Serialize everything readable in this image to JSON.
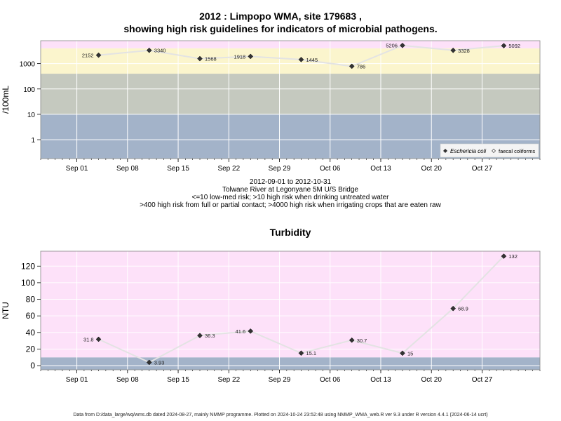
{
  "titles": {
    "line1": "2012 : Limpopo WMA, site 179683 ,",
    "line2": "showing high risk guidelines for indicators of microbial pathogens."
  },
  "caption": {
    "range": "2012-09-01 to 2012-10-31",
    "site": "Tolwane River at Legonyane 5M U/S Bridge",
    "rule1": "<=10 low-med risk; >10 high risk when drinking untreated water",
    "rule2": ">400 high risk from full or partial contact; >4000 high risk when irrigating crops that are eaten raw"
  },
  "footer": "Data from D:/data_large/wq/wms.db dated 2024-08-27, mainly NMMP programme. Plotted on 2024-10-24 23:52:48 using NMMP_WMA_web.R ver 9.3 under R version 4.4.1 (2024-06-14 ucrt)",
  "colors": {
    "band_low": "#a3b3c9",
    "band_mid": "#c5c9bf",
    "band_high": "#fbf5cd",
    "band_top": "#fde1f9",
    "line": "#e3e3e3",
    "point": "#333333",
    "grid": "#ffffff"
  },
  "chart_data": [
    {
      "type": "line",
      "title": "",
      "ylabel": "/100mL",
      "yscale": "log",
      "ylim": [
        0.18,
        8000
      ],
      "xlim": [
        "2012-08-27",
        "2012-11-04"
      ],
      "yticks": [
        1,
        10,
        100,
        1000
      ],
      "ytick_labels": [
        "1",
        "10",
        "100",
        "1000"
      ],
      "xticks": [
        "2012-09-01",
        "2012-09-08",
        "2012-09-15",
        "2012-09-22",
        "2012-09-29",
        "2012-10-06",
        "2012-10-13",
        "2012-10-20",
        "2012-10-27"
      ],
      "xtick_labels": [
        "Sep 01",
        "Sep 08",
        "Sep 15",
        "Sep 22",
        "Sep 29",
        "Oct 06",
        "Oct 13",
        "Oct 20",
        "Oct 27"
      ],
      "bands": [
        {
          "from": 0.18,
          "to": 10,
          "color": "#a3b3c9"
        },
        {
          "from": 10,
          "to": 400,
          "color": "#c5c9bf"
        },
        {
          "from": 400,
          "to": 4000,
          "color": "#fbf5cd"
        },
        {
          "from": 4000,
          "to": 8000,
          "color": "#fde1f9"
        }
      ],
      "series": [
        {
          "name": "Eschericia coli",
          "marker": "diamond",
          "x": [
            "2012-09-04",
            "2012-09-11",
            "2012-09-18",
            "2012-09-25",
            "2012-10-02",
            "2012-10-09",
            "2012-10-16",
            "2012-10-23",
            "2012-10-30"
          ],
          "values": [
            2152,
            3340,
            1568,
            1918,
            1445,
            786,
            5206,
            3328,
            5092
          ],
          "labels": [
            "2152",
            "3340",
            "1568",
            "1918",
            "1445",
            "786",
            "5206",
            "3328",
            "5092"
          ]
        }
      ],
      "legend": {
        "position": "bottom-right",
        "entries": [
          "Eschericia coli",
          "faecal coliforms"
        ]
      },
      "grid": true
    },
    {
      "type": "line",
      "title": "Turbidity",
      "ylabel": "NTU",
      "ylim": [
        -5,
        138
      ],
      "xlim": [
        "2012-08-27",
        "2012-11-04"
      ],
      "yticks": [
        0,
        20,
        40,
        60,
        80,
        100,
        120
      ],
      "ytick_labels": [
        "0",
        "20",
        "40",
        "60",
        "80",
        "100",
        "120"
      ],
      "xticks": [
        "2012-09-01",
        "2012-09-08",
        "2012-09-15",
        "2012-09-22",
        "2012-09-29",
        "2012-10-06",
        "2012-10-13",
        "2012-10-20",
        "2012-10-27"
      ],
      "xtick_labels": [
        "Sep 01",
        "Sep 08",
        "Sep 15",
        "Sep 22",
        "Sep 29",
        "Oct 06",
        "Oct 13",
        "Oct 20",
        "Oct 27"
      ],
      "bands": [
        {
          "from": -5,
          "to": 10,
          "color": "#a3b3c9"
        },
        {
          "from": 10,
          "to": 138,
          "color": "#fde1f9"
        }
      ],
      "series": [
        {
          "name": "",
          "marker": "diamond",
          "x": [
            "2012-09-04",
            "2012-09-11",
            "2012-09-18",
            "2012-09-25",
            "2012-10-02",
            "2012-10-09",
            "2012-10-16",
            "2012-10-23",
            "2012-10-30"
          ],
          "values": [
            31.8,
            3.93,
            36.3,
            41.6,
            15.1,
            30.7,
            15,
            68.9,
            132
          ],
          "labels": [
            "31.8",
            "3.93",
            "36.3",
            "41.6",
            "15.1",
            "30.7",
            "15",
            "68.9",
            "132"
          ]
        }
      ],
      "grid": true
    }
  ]
}
